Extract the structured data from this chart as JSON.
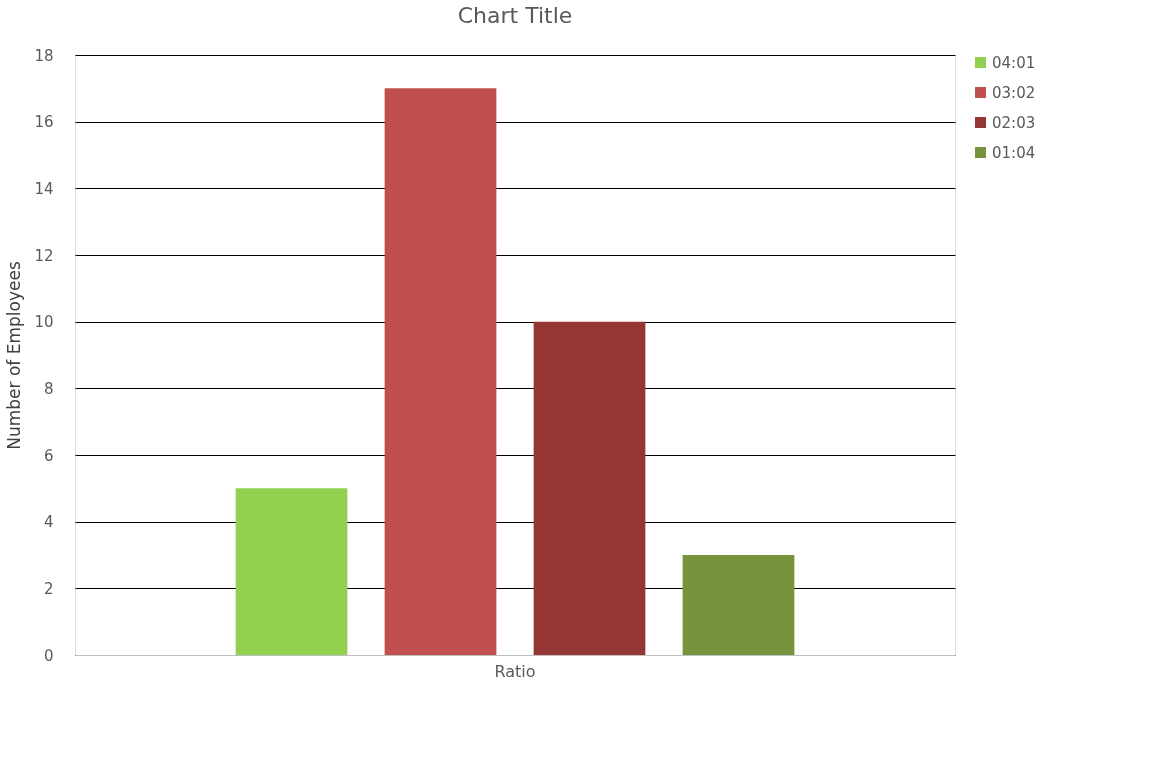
{
  "chart_data": {
    "type": "bar",
    "title": "Chart Title",
    "ylabel": "Number of Employees",
    "categories": [
      "Ratio"
    ],
    "series": [
      {
        "name": "04:01",
        "color": "#92d050",
        "values": [
          5
        ]
      },
      {
        "name": "03:02",
        "color": "#c0504d",
        "values": [
          17
        ]
      },
      {
        "name": "02:03",
        "color": "#943634",
        "values": [
          10
        ]
      },
      {
        "name": "01:04",
        "color": "#77933c",
        "values": [
          3
        ]
      }
    ],
    "ylim": [
      0,
      18
    ],
    "yticks": [
      0,
      2,
      4,
      6,
      8,
      10,
      12,
      14,
      16,
      18
    ],
    "grid": "y",
    "legend": "right"
  }
}
